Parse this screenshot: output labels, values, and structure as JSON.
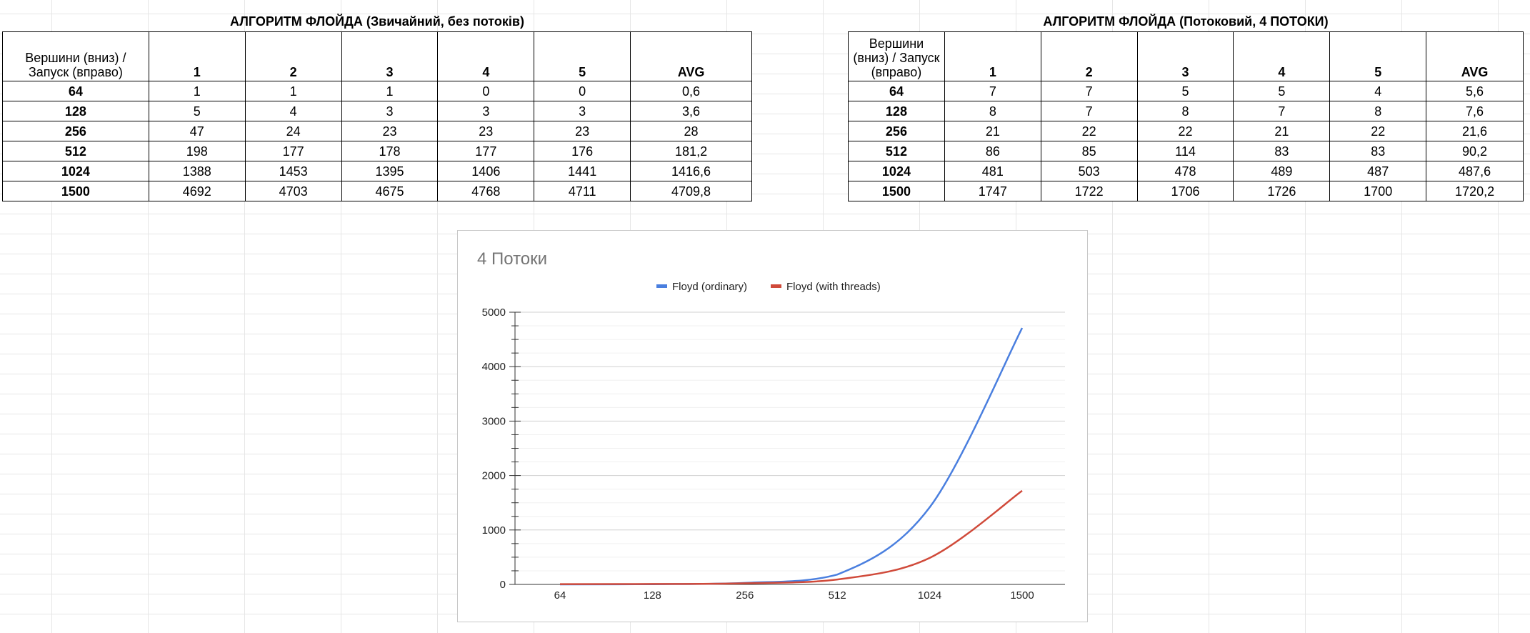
{
  "table_left": {
    "title": "АЛГОРИТМ ФЛОЙДА (Звичайний, без потоків)",
    "corner": "Вершини (вниз) / Запуск (вправо)",
    "headers": [
      "1",
      "2",
      "3",
      "4",
      "5",
      "AVG"
    ],
    "rows": [
      {
        "label": "64",
        "cells": [
          "1",
          "1",
          "1",
          "0",
          "0",
          "0,6"
        ]
      },
      {
        "label": "128",
        "cells": [
          "5",
          "4",
          "3",
          "3",
          "3",
          "3,6"
        ]
      },
      {
        "label": "256",
        "cells": [
          "47",
          "24",
          "23",
          "23",
          "23",
          "28"
        ]
      },
      {
        "label": "512",
        "cells": [
          "198",
          "177",
          "178",
          "177",
          "176",
          "181,2"
        ]
      },
      {
        "label": "1024",
        "cells": [
          "1388",
          "1453",
          "1395",
          "1406",
          "1441",
          "1416,6"
        ]
      },
      {
        "label": "1500",
        "cells": [
          "4692",
          "4703",
          "4675",
          "4768",
          "4711",
          "4709,8"
        ]
      }
    ]
  },
  "table_right": {
    "title": "АЛГОРИТМ ФЛОЙДА (Потоковий, 4 ПОТОКИ)",
    "corner": "Вершини (вниз) / Запуск (вправо)",
    "headers": [
      "1",
      "2",
      "3",
      "4",
      "5",
      "AVG"
    ],
    "rows": [
      {
        "label": "64",
        "cells": [
          "7",
          "7",
          "5",
          "5",
          "4",
          "5,6"
        ]
      },
      {
        "label": "128",
        "cells": [
          "8",
          "7",
          "8",
          "7",
          "8",
          "7,6"
        ]
      },
      {
        "label": "256",
        "cells": [
          "21",
          "22",
          "22",
          "21",
          "22",
          "21,6"
        ]
      },
      {
        "label": "512",
        "cells": [
          "86",
          "85",
          "114",
          "83",
          "83",
          "90,2"
        ]
      },
      {
        "label": "1024",
        "cells": [
          "481",
          "503",
          "478",
          "489",
          "487",
          "487,6"
        ]
      },
      {
        "label": "1500",
        "cells": [
          "1747",
          "1722",
          "1706",
          "1726",
          "1700",
          "1720,2"
        ]
      }
    ]
  },
  "chart_data": {
    "type": "line",
    "title": "4 Потоки",
    "categories": [
      "64",
      "128",
      "256",
      "512",
      "1024",
      "1500"
    ],
    "series": [
      {
        "name": "Floyd (ordinary)",
        "color": "#4a7fdf",
        "values": [
          0.6,
          3.6,
          28,
          181.2,
          1416.6,
          4709.8
        ]
      },
      {
        "name": "Floyd (with threads)",
        "color": "#d04a3a",
        "values": [
          5.6,
          7.6,
          21.6,
          90.2,
          487.6,
          1720.2
        ]
      }
    ],
    "xlabel": "",
    "ylabel": "",
    "ylim": [
      0,
      5000
    ],
    "yticks": [
      0,
      1000,
      2000,
      3000,
      4000,
      5000
    ],
    "grid": true,
    "legend": "top"
  }
}
